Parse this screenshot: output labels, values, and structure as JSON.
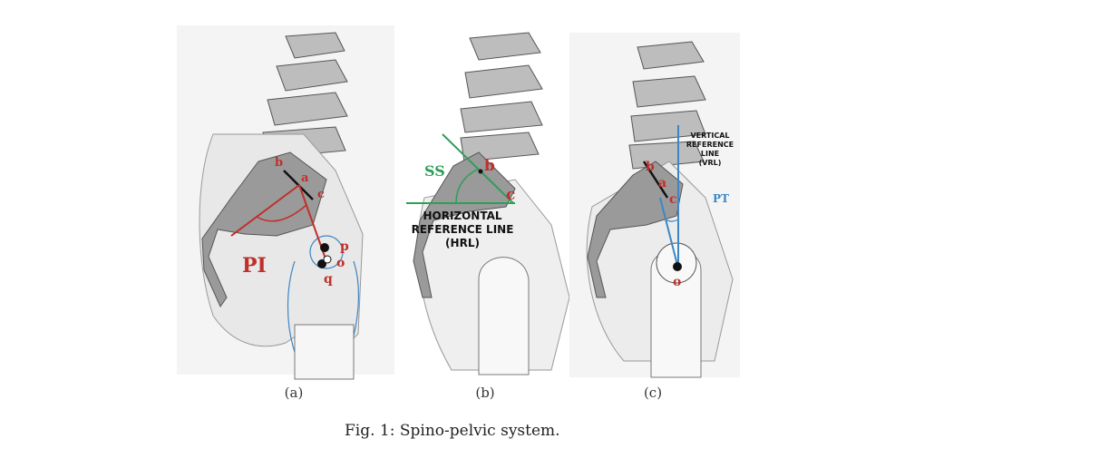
{
  "panel_a": {
    "sublabel": "(a)",
    "angle_label": "PI",
    "points": {
      "b": "b",
      "a": "a",
      "c": "c",
      "p": "p",
      "o": "o",
      "q": "q"
    }
  },
  "panel_b": {
    "sublabel": "(b)",
    "angle_label": "SS",
    "points": {
      "b": "b",
      "c": "c"
    },
    "reference_line": [
      "HORIZONTAL",
      "REFERENCE LINE",
      "(HRL)"
    ]
  },
  "panel_c": {
    "sublabel": "(c)",
    "angle_label": "PT",
    "points": {
      "b": "b",
      "a": "a",
      "c": "c",
      "o": "o"
    },
    "reference_line": [
      "VERTICAL",
      "REFERENCE",
      "LINE",
      "(VRL)"
    ]
  },
  "caption": "Fig. 1: Spino-pelvic system.",
  "colors": {
    "red": "#c0302a",
    "green": "#2e9e58",
    "blue": "#3d86c6",
    "bone": "#9a9a9a",
    "bone_outline": "#555555"
  }
}
